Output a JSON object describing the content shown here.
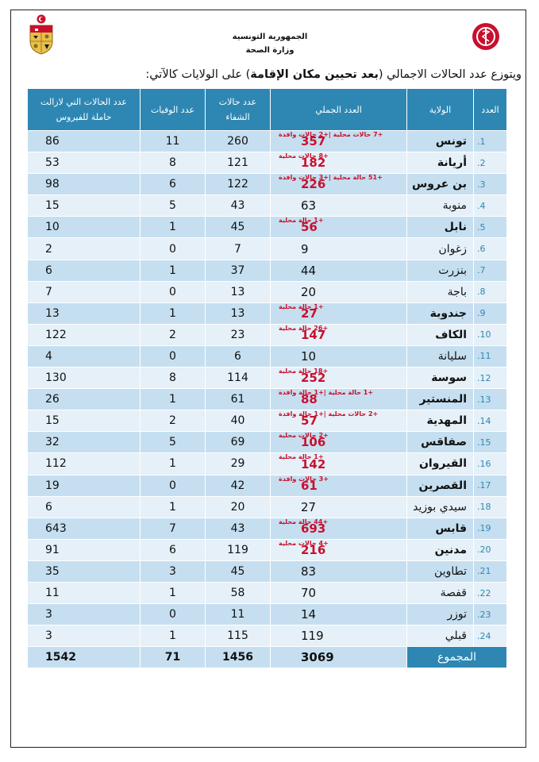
{
  "header": {
    "ministry_line1": "الجمهورية التونسية",
    "ministry_line2": "وزارة الصحة"
  },
  "intro": {
    "prefix": "ويتوزع عدد الحالات الاجمالي (",
    "bold": "بعد تحيين مكان الإقامة",
    "suffix": ") على الولايات كالآتي:"
  },
  "table": {
    "headers": {
      "number": "العدد",
      "governorate": "الولاية",
      "total": "العدد الجملي",
      "recovered": "عدد حالات الشفاء",
      "deaths": "عدد الوفيات",
      "active": "عدد الحالات التي لازالت حاملة للفيروس"
    },
    "rows": [
      {
        "n": "1.",
        "gov": "تونس",
        "total": "357",
        "note": "+7 حالات محلية |+2 حالات وافدة",
        "recovered": "260",
        "deaths": "11",
        "active": "86"
      },
      {
        "n": "2.",
        "gov": "أريانة",
        "total": "182",
        "note": "+8 حالات محلية",
        "recovered": "121",
        "deaths": "8",
        "active": "53"
      },
      {
        "n": "3.",
        "gov": "بن عروس",
        "total": "226",
        "note": "+51 حالة محلية |+3 حالات وافدة",
        "recovered": "122",
        "deaths": "6",
        "active": "98"
      },
      {
        "n": "4.",
        "gov": "منوبة",
        "total": "63",
        "note": "",
        "recovered": "43",
        "deaths": "5",
        "active": "15"
      },
      {
        "n": "5.",
        "gov": "نابل",
        "total": "56",
        "note": "+1 حالة محلية",
        "recovered": "45",
        "deaths": "1",
        "active": "10"
      },
      {
        "n": "6.",
        "gov": "زغوان",
        "total": "9",
        "note": "",
        "recovered": "7",
        "deaths": "0",
        "active": "2"
      },
      {
        "n": "7.",
        "gov": "بنزرت",
        "total": "44",
        "note": "",
        "recovered": "37",
        "deaths": "1",
        "active": "6"
      },
      {
        "n": "8.",
        "gov": "باجة",
        "total": "20",
        "note": "",
        "recovered": "13",
        "deaths": "0",
        "active": "7"
      },
      {
        "n": "9.",
        "gov": "جندوبة",
        "total": "27",
        "note": "+1 حالة محلية",
        "recovered": "13",
        "deaths": "1",
        "active": "13"
      },
      {
        "n": "10.",
        "gov": "الكاف",
        "total": "147",
        "note": "+26 حالة محلية",
        "recovered": "23",
        "deaths": "2",
        "active": "122"
      },
      {
        "n": "11.",
        "gov": "سليانة",
        "total": "10",
        "note": "",
        "recovered": "6",
        "deaths": "0",
        "active": "4"
      },
      {
        "n": "12.",
        "gov": "سوسة",
        "total": "252",
        "note": "+18 حالة محلية",
        "recovered": "114",
        "deaths": "8",
        "active": "130"
      },
      {
        "n": "13.",
        "gov": "المنستير",
        "total": "88",
        "note": "+1 حالة محلية |+1 حالة وافدة",
        "recovered": "61",
        "deaths": "1",
        "active": "26"
      },
      {
        "n": "14.",
        "gov": "المهدية",
        "total": "57",
        "note": "+2 حالات محلية |+1 حالة وافدة",
        "recovered": "40",
        "deaths": "2",
        "active": "15"
      },
      {
        "n": "15.",
        "gov": "صفاقس",
        "total": "106",
        "note": "+2 حالات محلية",
        "recovered": "69",
        "deaths": "5",
        "active": "32"
      },
      {
        "n": "16.",
        "gov": "القيروان",
        "total": "142",
        "note": "+1 حالة محلية",
        "recovered": "29",
        "deaths": "1",
        "active": "112"
      },
      {
        "n": "17.",
        "gov": "القصرين",
        "total": "61",
        "note": "+3 حالات وافدة",
        "recovered": "42",
        "deaths": "0",
        "active": "19"
      },
      {
        "n": "18.",
        "gov": "سيدي بوزيد",
        "total": "27",
        "note": "",
        "recovered": "20",
        "deaths": "1",
        "active": "6"
      },
      {
        "n": "19.",
        "gov": "قابس",
        "total": "693",
        "note": "+44 حالة محلية",
        "recovered": "43",
        "deaths": "7",
        "active": "643"
      },
      {
        "n": "20.",
        "gov": "مدنين",
        "total": "216",
        "note": "+4 حالات محلية",
        "recovered": "119",
        "deaths": "6",
        "active": "91"
      },
      {
        "n": "21.",
        "gov": "تطاوين",
        "total": "83",
        "note": "",
        "recovered": "45",
        "deaths": "3",
        "active": "35"
      },
      {
        "n": "22.",
        "gov": "قفصة",
        "total": "70",
        "note": "",
        "recovered": "58",
        "deaths": "1",
        "active": "11"
      },
      {
        "n": "23.",
        "gov": "توزر",
        "total": "14",
        "note": "",
        "recovered": "11",
        "deaths": "0",
        "active": "3"
      },
      {
        "n": "24.",
        "gov": "قبلي",
        "total": "119",
        "note": "",
        "recovered": "115",
        "deaths": "1",
        "active": "3"
      }
    ],
    "totals": {
      "label": "المجموع",
      "total": "3069",
      "recovered": "1456",
      "deaths": "71",
      "active": "1542"
    }
  },
  "colors": {
    "header_blue": "#2e87b3",
    "row_dark": "#c5dff0",
    "row_light": "#e5f0f8",
    "highlight_red": "#c8102e"
  }
}
